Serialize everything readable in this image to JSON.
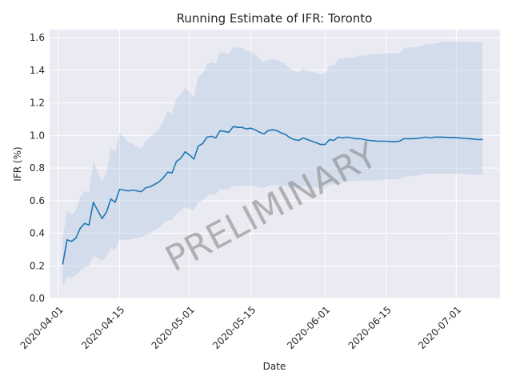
{
  "chart_data": {
    "type": "line",
    "title": "Running Estimate of IFR: Toronto",
    "xlabel": "Date",
    "ylabel": "IFR (%)",
    "xlim": [
      "2020-03-30",
      "2020-07-11"
    ],
    "ylim": [
      0.0,
      1.65
    ],
    "grid": true,
    "x_ticks": [
      "2020-04-01",
      "2020-04-15",
      "2020-05-01",
      "2020-05-15",
      "2020-06-01",
      "2020-06-15",
      "2020-07-01"
    ],
    "y_ticks": [
      "0.0",
      "0.2",
      "0.4",
      "0.6",
      "0.8",
      "1.0",
      "1.2",
      "1.4",
      "1.6"
    ],
    "annotation": "PRELIMINARY",
    "colors": {
      "line": "#1f77b4",
      "band": "#a8c4e0",
      "background": "#eaeaf2",
      "grid": "#ffffff",
      "text": "#262626"
    },
    "series": [
      {
        "name": "",
        "x": [
          "2020-04-02",
          "2020-04-03",
          "2020-04-04",
          "2020-04-05",
          "2020-04-06",
          "2020-04-07",
          "2020-04-08",
          "2020-04-09",
          "2020-04-10",
          "2020-04-11",
          "2020-04-12",
          "2020-04-13",
          "2020-04-14",
          "2020-04-15",
          "2020-04-16",
          "2020-04-17",
          "2020-04-18",
          "2020-04-19",
          "2020-04-20",
          "2020-04-21",
          "2020-04-22",
          "2020-04-23",
          "2020-04-24",
          "2020-04-25",
          "2020-04-26",
          "2020-04-27",
          "2020-04-28",
          "2020-04-29",
          "2020-04-30",
          "2020-05-01",
          "2020-05-02",
          "2020-05-03",
          "2020-05-04",
          "2020-05-05",
          "2020-05-06",
          "2020-05-07",
          "2020-05-08",
          "2020-05-09",
          "2020-05-10",
          "2020-05-11",
          "2020-05-12",
          "2020-05-13",
          "2020-05-14",
          "2020-05-15",
          "2020-05-16",
          "2020-05-17",
          "2020-05-18",
          "2020-05-19",
          "2020-05-20",
          "2020-05-21",
          "2020-05-22",
          "2020-05-23",
          "2020-05-24",
          "2020-05-25",
          "2020-05-26",
          "2020-05-27",
          "2020-05-28",
          "2020-05-29",
          "2020-05-30",
          "2020-05-31",
          "2020-06-01",
          "2020-06-02",
          "2020-06-03",
          "2020-06-04",
          "2020-06-05",
          "2020-06-06",
          "2020-06-07",
          "2020-06-08",
          "2020-06-09",
          "2020-06-10",
          "2020-06-11",
          "2020-06-12",
          "2020-06-13",
          "2020-06-14",
          "2020-06-15",
          "2020-06-16",
          "2020-06-17",
          "2020-06-18",
          "2020-06-19",
          "2020-06-20",
          "2020-06-21",
          "2020-06-22",
          "2020-06-23",
          "2020-06-24",
          "2020-06-25",
          "2020-06-26",
          "2020-06-27",
          "2020-06-28",
          "2020-06-29",
          "2020-06-30",
          "2020-07-01",
          "2020-07-02",
          "2020-07-03",
          "2020-07-04",
          "2020-07-05",
          "2020-07-06",
          "2020-07-07"
        ],
        "values": [
          0.21,
          0.36,
          0.35,
          0.37,
          0.43,
          0.46,
          0.45,
          0.59,
          0.54,
          0.49,
          0.53,
          0.61,
          0.59,
          0.67,
          0.665,
          0.66,
          0.665,
          0.66,
          0.655,
          0.68,
          0.685,
          0.7,
          0.715,
          0.74,
          0.775,
          0.77,
          0.84,
          0.86,
          0.9,
          0.88,
          0.855,
          0.935,
          0.95,
          0.99,
          0.995,
          0.985,
          1.03,
          1.025,
          1.02,
          1.055,
          1.05,
          1.05,
          1.04,
          1.045,
          1.035,
          1.02,
          1.01,
          1.03,
          1.035,
          1.03,
          1.015,
          1.005,
          0.985,
          0.975,
          0.97,
          0.985,
          0.975,
          0.965,
          0.955,
          0.945,
          0.945,
          0.975,
          0.97,
          0.99,
          0.985,
          0.99,
          0.985,
          0.98,
          0.98,
          0.975,
          0.97,
          0.968,
          0.965,
          0.965,
          0.965,
          0.963,
          0.962,
          0.965,
          0.98,
          0.98,
          0.98,
          0.982,
          0.985,
          0.99,
          0.985,
          0.99,
          0.99,
          0.99,
          0.988,
          0.988,
          0.986,
          0.985,
          0.982,
          0.98,
          0.978,
          0.975,
          0.976
        ],
        "lower": [
          0.08,
          0.13,
          0.13,
          0.14,
          0.17,
          0.19,
          0.2,
          0.26,
          0.25,
          0.23,
          0.26,
          0.31,
          0.3,
          0.36,
          0.36,
          0.36,
          0.365,
          0.37,
          0.375,
          0.39,
          0.4,
          0.42,
          0.435,
          0.46,
          0.48,
          0.48,
          0.52,
          0.54,
          0.56,
          0.55,
          0.54,
          0.59,
          0.6,
          0.63,
          0.64,
          0.64,
          0.67,
          0.67,
          0.67,
          0.69,
          0.69,
          0.69,
          0.69,
          0.69,
          0.69,
          0.68,
          0.68,
          0.69,
          0.695,
          0.695,
          0.69,
          0.69,
          0.68,
          0.68,
          0.68,
          0.69,
          0.69,
          0.685,
          0.68,
          0.675,
          0.675,
          0.7,
          0.7,
          0.715,
          0.715,
          0.72,
          0.72,
          0.72,
          0.725,
          0.725,
          0.725,
          0.725,
          0.725,
          0.725,
          0.73,
          0.73,
          0.73,
          0.735,
          0.745,
          0.75,
          0.75,
          0.755,
          0.76,
          0.765,
          0.765,
          0.765,
          0.765,
          0.765,
          0.765,
          0.765,
          0.765,
          0.765,
          0.763,
          0.762,
          0.76,
          0.76,
          0.76
        ],
        "upper": [
          0.37,
          0.54,
          0.51,
          0.54,
          0.62,
          0.66,
          0.65,
          0.84,
          0.78,
          0.72,
          0.77,
          0.93,
          0.9,
          1.02,
          0.99,
          0.96,
          0.95,
          0.93,
          0.92,
          0.97,
          0.99,
          1.01,
          1.04,
          1.09,
          1.15,
          1.13,
          1.23,
          1.25,
          1.29,
          1.27,
          1.23,
          1.36,
          1.38,
          1.44,
          1.45,
          1.44,
          1.51,
          1.51,
          1.5,
          1.545,
          1.54,
          1.535,
          1.52,
          1.515,
          1.5,
          1.47,
          1.45,
          1.465,
          1.47,
          1.465,
          1.45,
          1.44,
          1.41,
          1.395,
          1.39,
          1.41,
          1.4,
          1.39,
          1.385,
          1.375,
          1.38,
          1.43,
          1.43,
          1.47,
          1.47,
          1.48,
          1.48,
          1.48,
          1.49,
          1.49,
          1.495,
          1.5,
          1.5,
          1.5,
          1.505,
          1.505,
          1.505,
          1.505,
          1.535,
          1.54,
          1.54,
          1.545,
          1.55,
          1.56,
          1.56,
          1.565,
          1.57,
          1.575,
          1.575,
          1.575,
          1.575,
          1.575,
          1.574,
          1.573,
          1.572,
          1.572,
          1.57
        ]
      }
    ]
  }
}
